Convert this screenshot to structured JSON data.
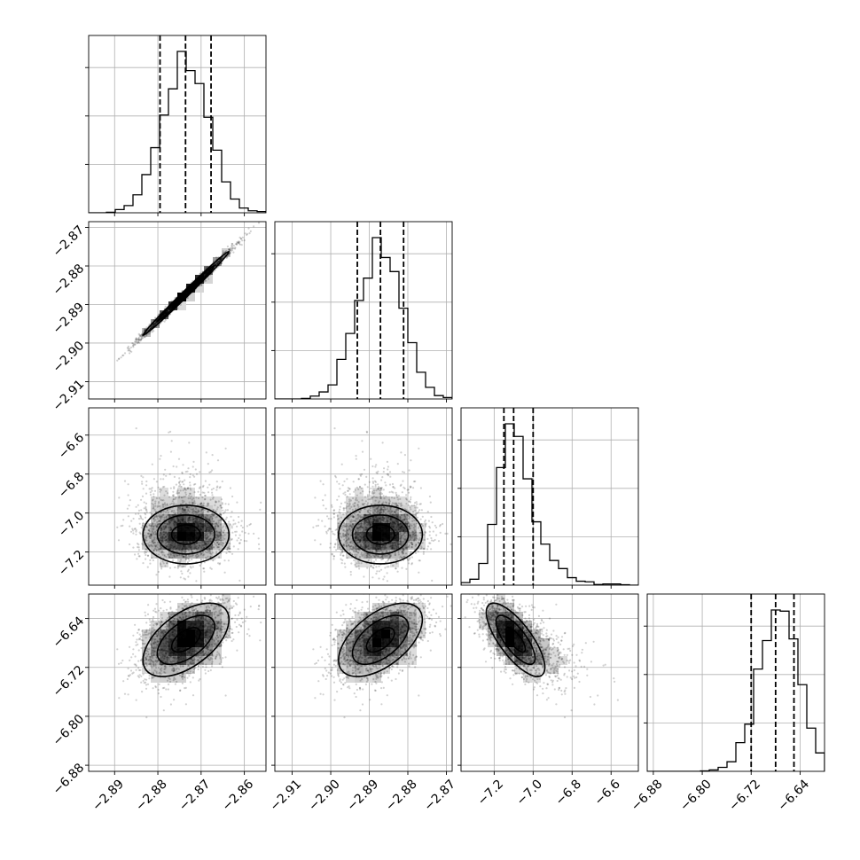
{
  "chart_data": {
    "type": "corner",
    "parameters": [
      {
        "range": [
          -2.896,
          -2.855
        ],
        "ticks": [
          -2.89,
          -2.88,
          -2.87,
          -2.86
        ],
        "tick_labels": [
          "−2.89",
          "−2.88",
          "−2.87",
          "−2.86"
        ],
        "mean": -2.8735,
        "sd": 0.0053,
        "quantiles": [
          -2.8795,
          -2.8736,
          -2.8677
        ]
      },
      {
        "range": [
          -2.9145,
          -2.8685
        ],
        "ticks": [
          -2.91,
          -2.9,
          -2.89,
          -2.88,
          -2.87
        ],
        "tick_labels": [
          "−2.91",
          "−2.90",
          "−2.89",
          "−2.88",
          "−2.87"
        ],
        "mean": -2.8871,
        "sd": 0.0058,
        "quantiles": [
          -2.8931,
          -2.8871,
          -2.8811
        ]
      },
      {
        "range": [
          -7.37,
          -6.46
        ],
        "ticks": [
          -7.2,
          -7.0,
          -6.8,
          -6.6
        ],
        "tick_labels": [
          "−7.2",
          "−7.0",
          "−6.8",
          "−6.6"
        ],
        "mean": -7.09,
        "sd": 0.08,
        "quantiles": [
          -7.15,
          -7.1,
          -7.0
        ],
        "skew_right": true
      },
      {
        "range": [
          -6.89,
          -6.6
        ],
        "ticks": [
          -6.88,
          -6.8,
          -6.72,
          -6.64
        ],
        "tick_labels": [
          "−6.88",
          "−6.80",
          "−6.72",
          "−6.64"
        ],
        "mean": -6.675,
        "sd": 0.032,
        "quantiles": [
          -6.72,
          -6.68,
          -6.65
        ]
      }
    ],
    "correlations": {
      "0-1": 0.995,
      "0-2": 0.0,
      "1-2": 0.0,
      "0-3": 0.55,
      "1-3": 0.55,
      "2-3": -0.75
    },
    "histogram": {
      "bins": 20,
      "peak_heights": [
        1.0,
        1.0,
        1.0,
        1.0
      ]
    },
    "n_samples": 4000,
    "grid": true,
    "quantile_lines": "dashed"
  }
}
